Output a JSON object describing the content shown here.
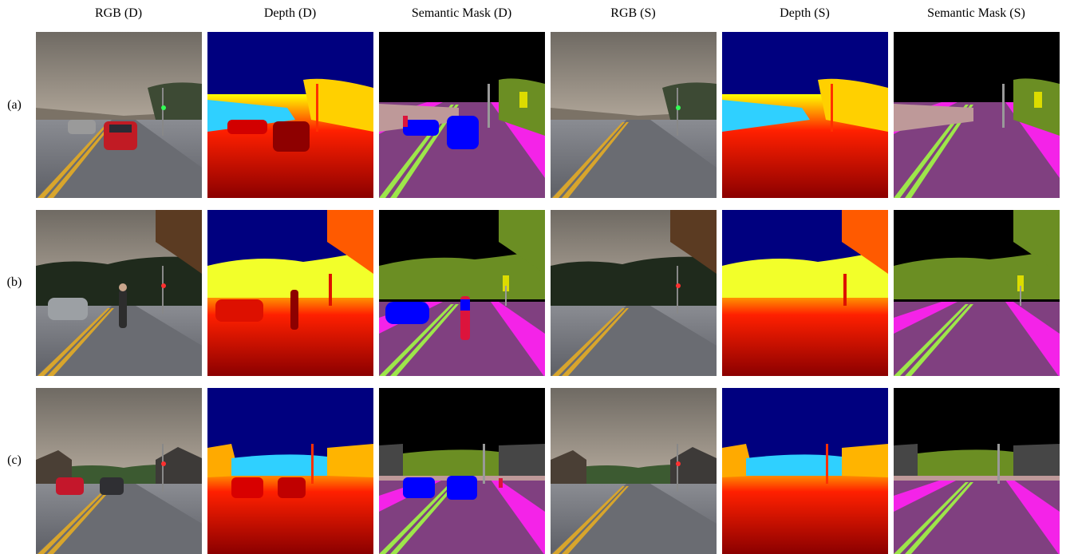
{
  "columns": [
    {
      "label": "RGB (D)",
      "kind": "rgb",
      "objects": true
    },
    {
      "label": "Depth (D)",
      "kind": "depth",
      "objects": true
    },
    {
      "label": "Semantic Mask (D)",
      "kind": "mask",
      "objects": true
    },
    {
      "label": "RGB (S)",
      "kind": "rgb",
      "objects": false
    },
    {
      "label": "Depth (S)",
      "kind": "depth",
      "objects": false
    },
    {
      "label": "Semantic Mask (S)",
      "kind": "mask",
      "objects": false
    }
  ],
  "rows": [
    {
      "label": "(a)",
      "scene": "street-a"
    },
    {
      "label": "(b)",
      "scene": "street-b"
    },
    {
      "label": "(c)",
      "scene": "street-c"
    }
  ],
  "colors": {
    "mask_sky": "#000000",
    "mask_road": "#804080",
    "mask_sidewalk": "#f423e8",
    "mask_vegetation": "#6b8e23",
    "mask_vehicle": "#0000ff",
    "mask_pedestrian": "#dc143c",
    "mask_lane": "#9de64a",
    "mask_building": "#464646",
    "mask_fence": "#be9999",
    "mask_pole": "#999999",
    "mask_traffic_light": "#dcdc00",
    "depth_sky": "#00007f",
    "depth_near": "#8b0000",
    "depth_mid": "#ff2000",
    "depth_far": "#ffff00",
    "depth_farther": "#2fd0ff"
  }
}
